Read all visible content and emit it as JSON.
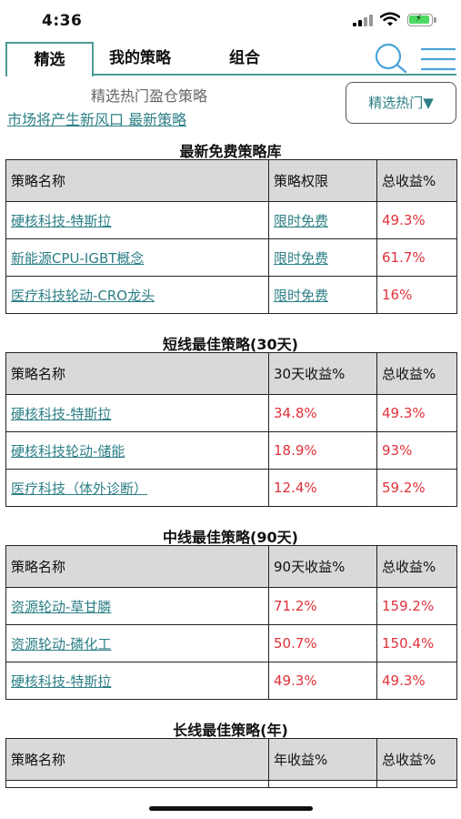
{
  "status_bar": {
    "time": "4:36"
  },
  "tabs": [
    {
      "label": "精选"
    },
    {
      "label": "我的策略"
    },
    {
      "label": "组合"
    }
  ],
  "header": {
    "subtitle": "精选热门盈仓策略",
    "news_link": "市场将产生新风口 最新策略",
    "filter_button": "精选热门▼"
  },
  "sections": [
    {
      "title": "最新免费策略库",
      "headers": [
        "策略名称",
        "策略权限",
        "总收益%"
      ],
      "rows": [
        [
          "硬核科技-特斯拉",
          "限时免费",
          "49.3%"
        ],
        [
          "新能源CPU-IGBT概念",
          "限时免费",
          "61.7%"
        ],
        [
          "医疗科技轮动-CRO龙头",
          "限时免费",
          "16%"
        ]
      ]
    },
    {
      "title": "短线最佳策略(30天)",
      "headers": [
        "策略名称",
        "30天收益%",
        "总收益%"
      ],
      "rows": [
        [
          "硬核科技-特斯拉",
          "34.8%",
          "49.3%"
        ],
        [
          "硬核科技轮动-储能",
          "18.9%",
          "93%"
        ],
        [
          "医疗科技（体外诊断）",
          "12.4%",
          "59.2%"
        ]
      ]
    },
    {
      "title": "中线最佳策略(90天)",
      "headers": [
        "策略名称",
        "90天收益%",
        "总收益%"
      ],
      "rows": [
        [
          "资源轮动-草甘膦",
          "71.2%",
          "159.2%"
        ],
        [
          "资源轮动-磷化工",
          "50.7%",
          "150.4%"
        ],
        [
          "硬核科技-特斯拉",
          "49.3%",
          "49.3%"
        ]
      ]
    },
    {
      "title": "长线最佳策略(年)",
      "headers": [
        "策略名称",
        "年收益%",
        "总收益%"
      ],
      "rows": []
    }
  ],
  "colors": {
    "accent": "#4a9a95",
    "link": "#2c7f86",
    "gain": "#e0323a",
    "header_bg": "#d9d9d9"
  }
}
